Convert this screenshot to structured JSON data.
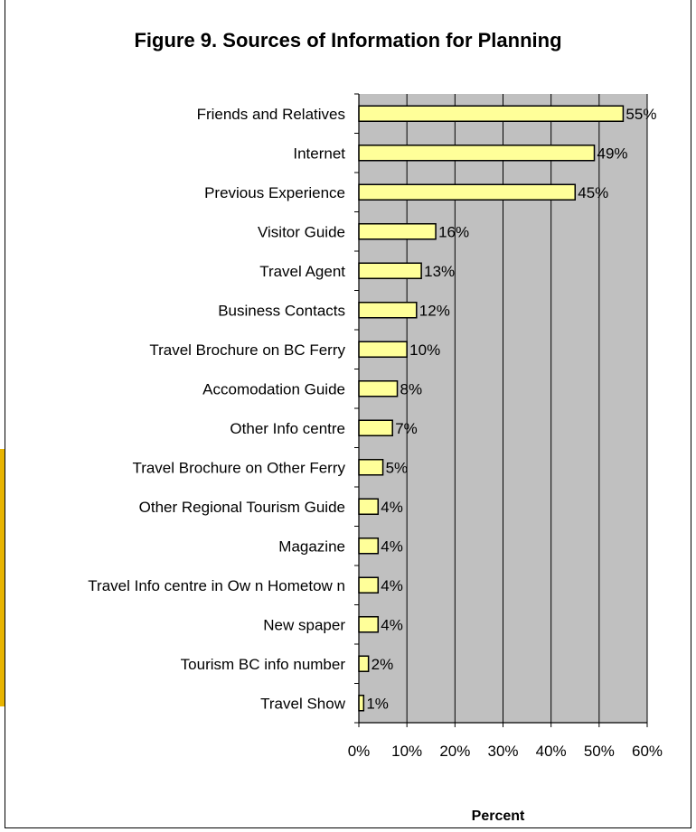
{
  "chart_data": {
    "type": "bar",
    "orientation": "horizontal",
    "title": "Figure 9.  Sources of Information for Planning",
    "xlabel": "Percent",
    "ylabel": "",
    "xlim": [
      0,
      60
    ],
    "x_ticks": [
      "0%",
      "10%",
      "20%",
      "30%",
      "40%",
      "50%",
      "60%"
    ],
    "categories": [
      "Friends and Relatives",
      "Internet",
      "Previous Experience",
      "Visitor Guide",
      "Travel Agent",
      "Business Contacts",
      "Travel Brochure on BC Ferry",
      "Accomodation Guide",
      "Other Info centre",
      "Travel Brochure on Other Ferry",
      "Other Regional Tourism Guide",
      "Magazine",
      "Travel Info centre in Ow n Hometow n",
      "New spaper",
      "Tourism BC info number",
      "Travel Show"
    ],
    "values": [
      55,
      49,
      45,
      16,
      13,
      12,
      10,
      8,
      7,
      5,
      4,
      4,
      4,
      4,
      2,
      1
    ],
    "value_labels": [
      "55%",
      "49%",
      "45%",
      "16%",
      "13%",
      "12%",
      "10%",
      "8%",
      "7%",
      "5%",
      "4%",
      "4%",
      "4%",
      "4%",
      "2%",
      "1%"
    ],
    "grid": true,
    "colors": {
      "bar_fill": "#ffff99",
      "plot_bg": "#c0c0c0",
      "bar_stroke": "#000000",
      "accent": "#e8b400"
    }
  }
}
